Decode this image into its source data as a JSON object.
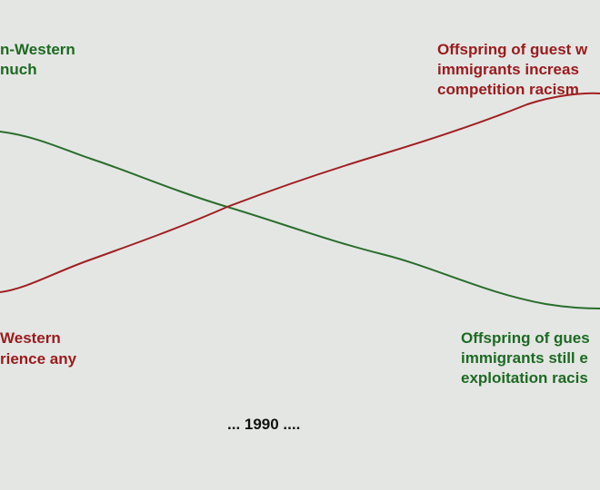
{
  "annotations": {
    "top_left": [
      "n-Western",
      "nuch"
    ],
    "top_right": [
      "Offspring of guest w",
      "immigrants increas",
      "competition racism"
    ],
    "bottom_left": [
      "Western",
      "rience any"
    ],
    "bottom_right": [
      "Offspring of gues",
      "immigrants still e",
      "exploitation racis"
    ]
  },
  "time_label": "... 1990 ...."
}
